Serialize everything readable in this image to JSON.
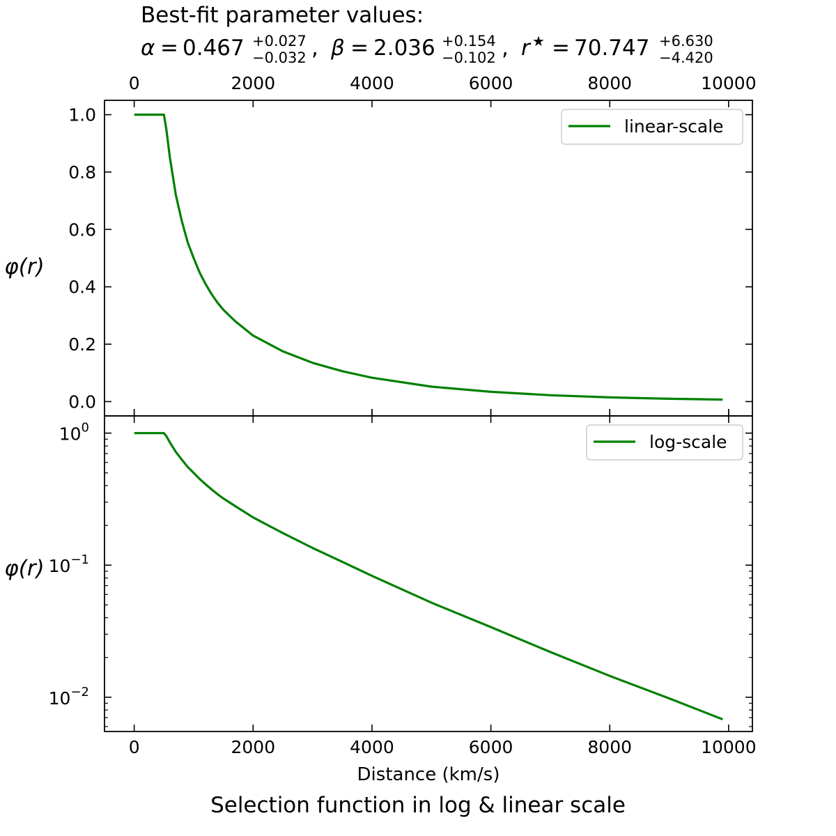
{
  "header": {
    "line1": "Best-fit parameter values:",
    "line2": {
      "alpha": {
        "symbol": "α",
        "value": "0.467",
        "plus": "+0.027",
        "minus": "−0.032"
      },
      "beta": {
        "symbol": "β",
        "value": "2.036",
        "plus": "+0.154",
        "minus": "−0.102"
      },
      "rstar": {
        "symbol": "r",
        "star": "★",
        "value": "70.747",
        "plus": "+6.630",
        "minus": "−4.420"
      }
    }
  },
  "footer_title": "Selection function in log & linear scale",
  "colors": {
    "curve": "#008000",
    "axes": "#000000",
    "legend_border": "#cccccc"
  },
  "chart_data": [
    {
      "type": "line",
      "scale": "linear",
      "ylabel": "φ(r)",
      "xlim": [
        -500,
        10400
      ],
      "ylim": [
        -0.05,
        1.05
      ],
      "xticks": [
        0,
        2000,
        4000,
        6000,
        8000,
        10000
      ],
      "xtick_labels": [
        "0",
        "2000",
        "4000",
        "6000",
        "8000",
        "10000"
      ],
      "xtick_labels_position": "top",
      "yticks": [
        0.0,
        0.2,
        0.4,
        0.6,
        0.8,
        1.0
      ],
      "ytick_labels": [
        "0.0",
        "0.2",
        "0.4",
        "0.6",
        "0.8",
        "1.0"
      ],
      "legend_placement": "top-right",
      "grid": false,
      "series": [
        {
          "name": "linear-scale",
          "color": "#008000",
          "x": [
            0,
            250,
            500,
            540,
            600,
            700,
            800,
            900,
            1000,
            1100,
            1200,
            1300,
            1400,
            1500,
            1700,
            2000,
            2500,
            3000,
            3500,
            4000,
            5000,
            6000,
            7000,
            8000,
            9000,
            9900
          ],
          "y": [
            1.0,
            1.0,
            1.0,
            0.95,
            0.85,
            0.72,
            0.63,
            0.555,
            0.5,
            0.45,
            0.41,
            0.375,
            0.345,
            0.32,
            0.28,
            0.23,
            0.175,
            0.135,
            0.106,
            0.083,
            0.052,
            0.034,
            0.022,
            0.0145,
            0.0098,
            0.0068
          ]
        }
      ]
    },
    {
      "type": "line",
      "scale": "log",
      "ylabel": "φ(r)",
      "xlabel": "Distance (km/s)",
      "xlim": [
        -500,
        10400
      ],
      "ylim": [
        0.0055,
        1.35
      ],
      "xticks": [
        0,
        2000,
        4000,
        6000,
        8000,
        10000
      ],
      "xtick_labels": [
        "0",
        "2000",
        "4000",
        "6000",
        "8000",
        "10000"
      ],
      "yticks": [
        1,
        0.1,
        0.01
      ],
      "ytick_labels": [
        {
          "base": "10",
          "exp": "0"
        },
        {
          "base": "10",
          "exp": "−1"
        },
        {
          "base": "10",
          "exp": "−2"
        }
      ],
      "legend_placement": "top-right",
      "grid": false,
      "series": [
        {
          "name": "log-scale",
          "color": "#008000",
          "x": [
            0,
            250,
            500,
            540,
            600,
            700,
            800,
            900,
            1000,
            1100,
            1200,
            1300,
            1400,
            1500,
            1700,
            2000,
            2500,
            3000,
            3500,
            4000,
            5000,
            6000,
            7000,
            8000,
            9000,
            9900
          ],
          "y": [
            1.0,
            1.0,
            1.0,
            0.95,
            0.85,
            0.72,
            0.63,
            0.555,
            0.5,
            0.45,
            0.41,
            0.375,
            0.345,
            0.32,
            0.28,
            0.23,
            0.175,
            0.135,
            0.106,
            0.083,
            0.052,
            0.034,
            0.022,
            0.0145,
            0.0098,
            0.0068
          ]
        }
      ]
    }
  ]
}
